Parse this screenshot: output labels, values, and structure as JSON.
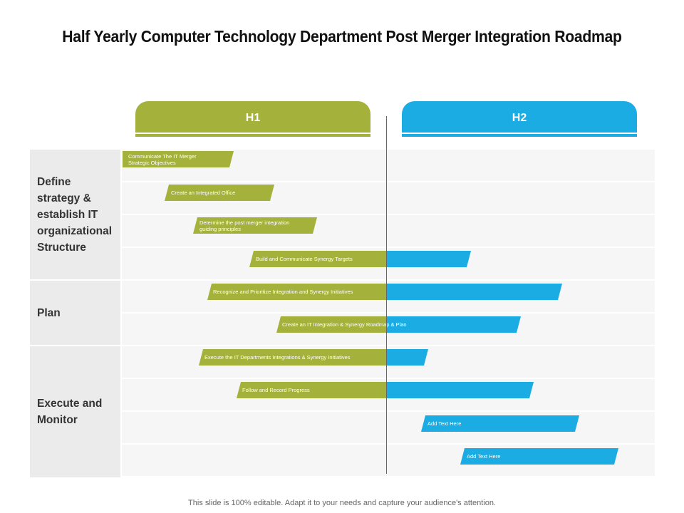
{
  "title": "Half Yearly Computer Technology Department Post Merger Integration Roadmap",
  "headers": {
    "h1": "H1",
    "h2": "H2"
  },
  "categories": [
    {
      "label": "Define strategy & establish IT organizational Structure"
    },
    {
      "label": "Plan"
    },
    {
      "label": "Execute and Monitor"
    }
  ],
  "tasks": [
    {
      "label": "Communicate The IT Merger Strategic  Objectives"
    },
    {
      "label": "Create an Integrated  Office"
    },
    {
      "label": "Determine the post merger integration guiding principles"
    },
    {
      "label": "Build and Communicate Synergy Targets"
    },
    {
      "label": "Recognize and Prioritize Integration  and Synergy Initiatives"
    },
    {
      "label": "Create an IT Integration  & Synergy Roadmap & Plan"
    },
    {
      "label": "Execute the IT Departments Integrations & Synergy Initiatives"
    },
    {
      "label": "Follow and Record Progress"
    },
    {
      "label": "Add Text Here"
    },
    {
      "label": "Add Text Here"
    }
  ],
  "colors": {
    "h1": "#a4b13a",
    "h2": "#1aace3"
  },
  "footer": "This slide is 100% editable. Adapt it to your needs and capture your audience's attention."
}
